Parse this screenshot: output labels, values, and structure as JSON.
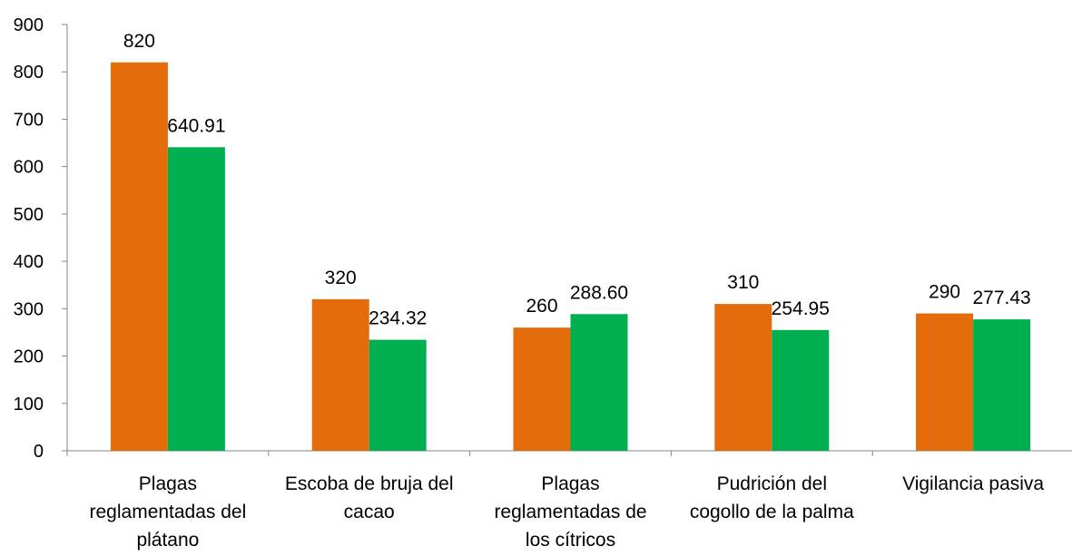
{
  "chart_data": {
    "type": "bar",
    "title": "",
    "xlabel": "",
    "ylabel": "",
    "ylim": [
      0,
      900
    ],
    "yticks": [
      0,
      100,
      200,
      300,
      400,
      500,
      600,
      700,
      800,
      900
    ],
    "grid": false,
    "legend": "none",
    "categories": [
      [
        "Plagas",
        "reglamentadas del",
        "plátano"
      ],
      [
        "Escoba de bruja del",
        "cacao"
      ],
      [
        "Plagas",
        "reglamentadas de",
        "los cítricos"
      ],
      [
        "Pudrición del",
        "cogollo de la palma"
      ],
      [
        "Vigilancia pasiva"
      ]
    ],
    "series": [
      {
        "color": "#E46C0A",
        "values": [
          820,
          320,
          260,
          310,
          290
        ],
        "labels": [
          "820",
          "320",
          "260",
          "310",
          "290"
        ]
      },
      {
        "color": "#00B050",
        "values": [
          640.91,
          234.32,
          288.6,
          254.95,
          277.43
        ],
        "labels": [
          "640.91",
          "234.32",
          "288.60",
          "254.95",
          "277.43"
        ]
      }
    ]
  }
}
